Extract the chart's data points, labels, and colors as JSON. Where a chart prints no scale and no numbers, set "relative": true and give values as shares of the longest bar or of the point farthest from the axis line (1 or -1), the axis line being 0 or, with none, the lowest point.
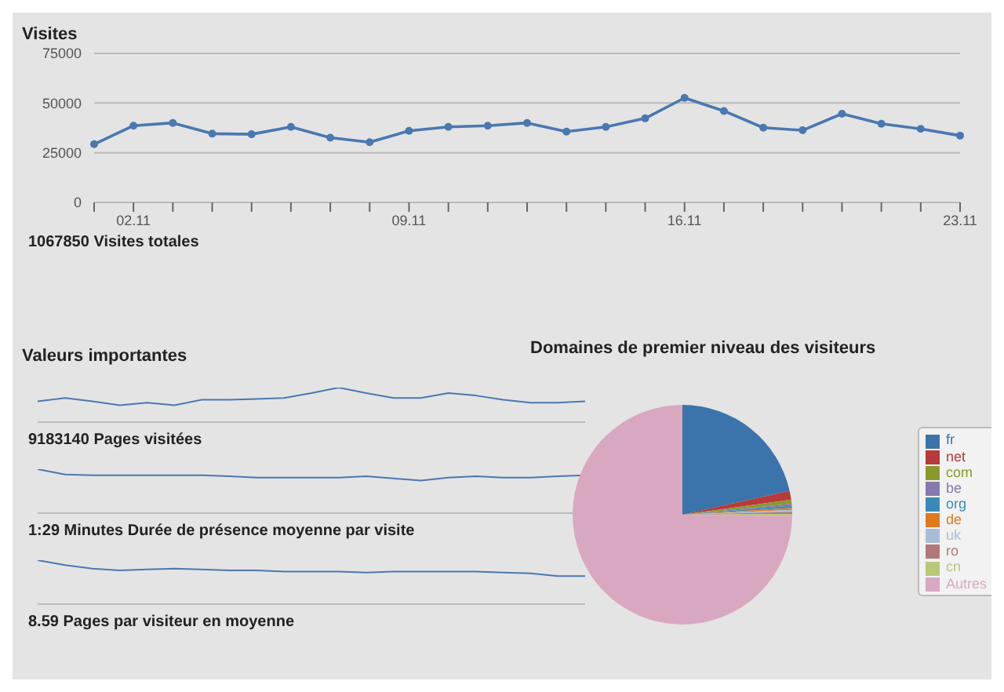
{
  "chart_data": [
    {
      "type": "line",
      "title": "Visites",
      "categories": [
        null,
        "02.11",
        null,
        null,
        null,
        null,
        null,
        null,
        "09.11",
        null,
        null,
        null,
        null,
        null,
        null,
        "16.11",
        null,
        null,
        null,
        null,
        null,
        null,
        "23.11"
      ],
      "series": [
        {
          "color": "#4a78b0",
          "values": [
            29300,
            38600,
            40000,
            34600,
            34300,
            38000,
            32600,
            30300,
            36000,
            38000,
            38600,
            40000,
            35600,
            38000,
            42300,
            52600,
            46000,
            37600,
            36300,
            44600,
            39600,
            37000,
            33600
          ]
        }
      ],
      "ylim": [
        0,
        75000
      ],
      "yticks": [
        0,
        25000,
        50000,
        75000
      ],
      "grid": "y",
      "marker": "circle",
      "line_style": "solid",
      "annotations": [
        "1067850 Visites totales"
      ]
    },
    {
      "type": "line",
      "title": "Valeurs importantes",
      "relative": true,
      "categories": [
        null,
        null,
        null,
        null,
        null,
        null,
        null,
        null,
        null,
        null,
        null,
        null,
        null,
        null,
        null,
        null,
        null,
        null,
        null,
        null,
        null
      ],
      "series": [
        {
          "color": "#4a78b0",
          "values": [
            0.6,
            0.7,
            0.6,
            0.49,
            0.56,
            0.49,
            0.65,
            0.65,
            0.67,
            0.7,
            0.84,
            1,
            0.84,
            0.7,
            0.7,
            0.84,
            0.77,
            0.65,
            0.56,
            0.56,
            0.6
          ]
        }
      ],
      "annotations": [
        "9183140 Pages visitées"
      ]
    },
    {
      "type": "line",
      "relative": true,
      "categories": [
        null,
        null,
        null,
        null,
        null,
        null,
        null,
        null,
        null,
        null,
        null,
        null,
        null,
        null,
        null,
        null,
        null,
        null,
        null,
        null,
        null
      ],
      "series": [
        {
          "color": "#4a78b0",
          "values": [
            1,
            0.88,
            0.86,
            0.86,
            0.86,
            0.86,
            0.86,
            0.84,
            0.81,
            0.81,
            0.81,
            0.81,
            0.84,
            0.79,
            0.74,
            0.81,
            0.84,
            0.81,
            0.81,
            0.84,
            0.86
          ]
        }
      ],
      "annotations": [
        "1:29 Minutes Durée de présence moyenne par visite"
      ]
    },
    {
      "type": "line",
      "relative": true,
      "categories": [
        null,
        null,
        null,
        null,
        null,
        null,
        null,
        null,
        null,
        null,
        null,
        null,
        null,
        null,
        null,
        null,
        null,
        null,
        null,
        null,
        null
      ],
      "series": [
        {
          "color": "#4a78b0",
          "values": [
            1,
            0.89,
            0.81,
            0.77,
            0.79,
            0.81,
            0.79,
            0.77,
            0.77,
            0.74,
            0.74,
            0.74,
            0.72,
            0.74,
            0.74,
            0.74,
            0.74,
            0.72,
            0.7,
            0.64,
            0.64
          ]
        }
      ],
      "annotations": [
        "8.59 Pages par visiteur en moyenne"
      ]
    },
    {
      "type": "pie",
      "title": "Domaines de premier niveau des visiteurs",
      "categories": [
        "fr",
        "net",
        "com",
        "be",
        "org",
        "de",
        "uk",
        "ro",
        "cn",
        "Autres"
      ],
      "values": [
        21.5,
        1.3,
        0.6,
        0.3,
        0.3,
        0.3,
        0.3,
        0.3,
        0.3,
        74.8
      ],
      "colors": [
        "#3a74aa",
        "#b83a3a",
        "#8a9a2a",
        "#8878b0",
        "#3a8ab8",
        "#e07a20",
        "#a8bcd8",
        "#b07878",
        "#b8c878",
        "#d8a8c0"
      ],
      "legend": "right"
    }
  ]
}
